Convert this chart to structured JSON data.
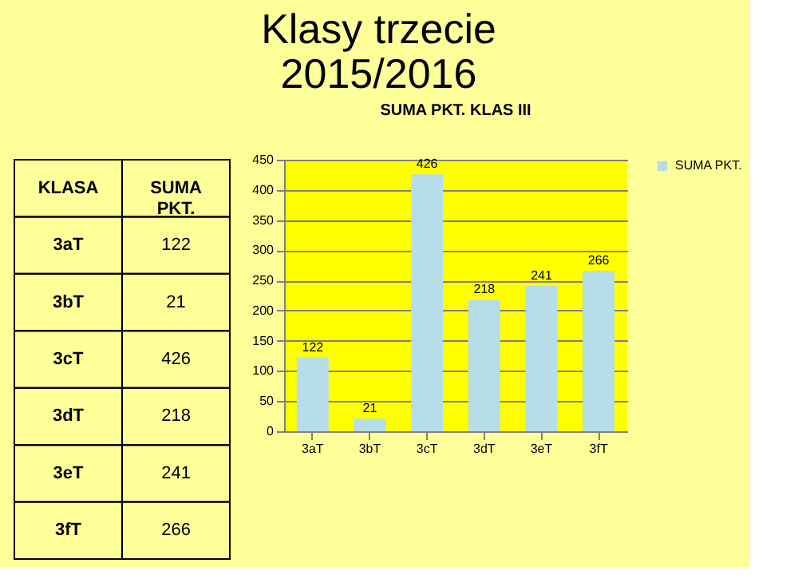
{
  "chart_data": [
    {
      "type": "other",
      "annotations": [
        "KLASA",
        "SUMA PKT.",
        "3aT",
        "122",
        "3bT",
        "21",
        "3cT",
        "426",
        "3dT",
        "218",
        "3eT",
        "241",
        "3fT",
        "266"
      ]
    },
    {
      "type": "bar",
      "title": "Klasy trzecie 2015/2016",
      "subtitle": "SUMA PKT. KLAS III",
      "categories": [
        "3aT",
        "3bT",
        "3cT",
        "3dT",
        "3eT",
        "3fT"
      ],
      "series": [
        {
          "name": "SUMA PKT.",
          "color": "#b7dde8",
          "values": [
            122,
            21,
            426,
            218,
            241,
            266
          ]
        }
      ],
      "ylim": [
        0,
        450
      ],
      "yticks": [
        0,
        50,
        100,
        150,
        200,
        250,
        300,
        350,
        400,
        450
      ],
      "grid": "y",
      "legend": "right",
      "data_labels": true
    }
  ]
}
